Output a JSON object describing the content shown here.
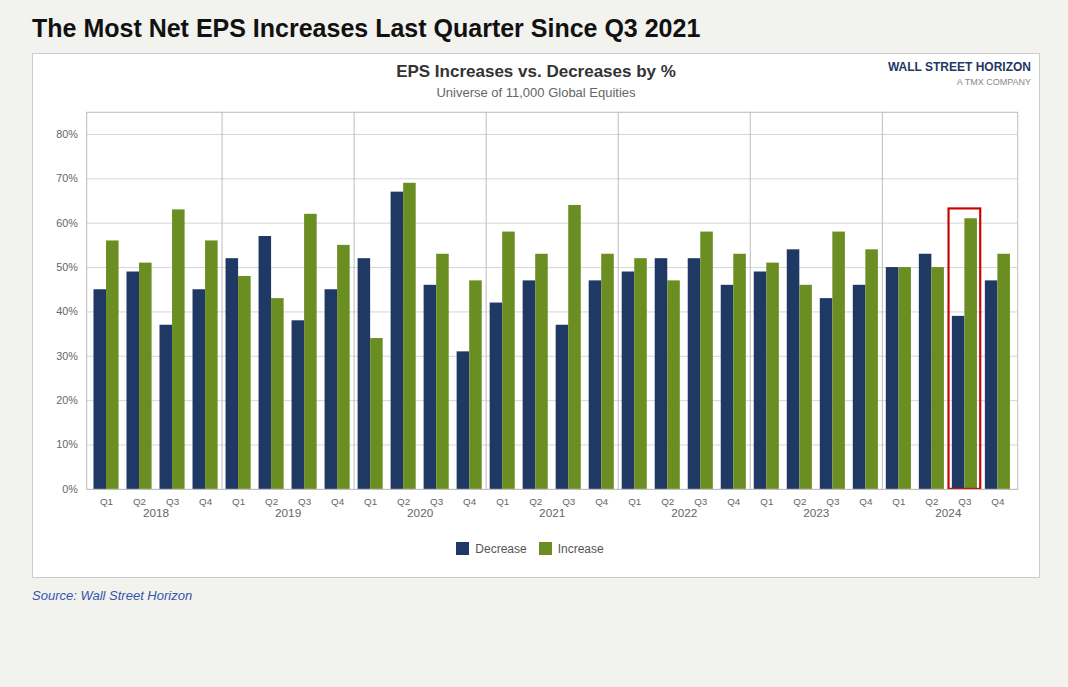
{
  "chart_data": {
    "type": "bar",
    "title": "The Most Net EPS Increases Last Quarter Since Q3 2021",
    "chart_title": "EPS Increases vs. Decreases by %",
    "subtitle": "Universe of 11,000 Global Equities",
    "source": "Source: Wall Street Horizon",
    "annotations": [
      {
        "text": "WALL STREET HORIZON"
      },
      {
        "text": "A TMX COMPANY"
      },
      {
        "type": "rect",
        "category": "Q3",
        "group": "2024",
        "color": "#cc0000"
      }
    ],
    "categories": [
      "Q1",
      "Q2",
      "Q3",
      "Q4",
      "Q1",
      "Q2",
      "Q3",
      "Q4",
      "Q1",
      "Q2",
      "Q3",
      "Q4",
      "Q1",
      "Q2",
      "Q3",
      "Q4",
      "Q1",
      "Q2",
      "Q3",
      "Q4",
      "Q1",
      "Q2",
      "Q3",
      "Q4",
      "Q1",
      "Q2",
      "Q3",
      "Q4"
    ],
    "category_groups": [
      "2018",
      "2018",
      "2018",
      "2018",
      "2019",
      "2019",
      "2019",
      "2019",
      "2020",
      "2020",
      "2020",
      "2020",
      "2021",
      "2021",
      "2021",
      "2021",
      "2022",
      "2022",
      "2022",
      "2022",
      "2023",
      "2023",
      "2023",
      "2023",
      "2024",
      "2024",
      "2024",
      "2024"
    ],
    "series": [
      {
        "name": "Decrease",
        "color": "#1f3864",
        "values": [
          45,
          49,
          37,
          45,
          52,
          57,
          38,
          45,
          52,
          67,
          46,
          31,
          42,
          47,
          37,
          47,
          49,
          52,
          52,
          46,
          49,
          54,
          43,
          46,
          50,
          53,
          39,
          47
        ]
      },
      {
        "name": "Increase",
        "color": "#6b8e23",
        "values": [
          56,
          51,
          63,
          56,
          48,
          43,
          62,
          55,
          34,
          69,
          53,
          47,
          58,
          53,
          64,
          53,
          52,
          47,
          58,
          53,
          51,
          46,
          58,
          54,
          50,
          50,
          61,
          53
        ]
      }
    ],
    "ylim": [
      0,
      85
    ],
    "yticks": [
      {
        "value": 0,
        "label": "0%"
      },
      {
        "value": 10,
        "label": "10%"
      },
      {
        "value": 20,
        "label": "20%"
      },
      {
        "value": 30,
        "label": "30%"
      },
      {
        "value": 40,
        "label": "40%"
      },
      {
        "value": 50,
        "label": "50%"
      },
      {
        "value": 60,
        "label": "60%"
      },
      {
        "value": 70,
        "label": "70%"
      },
      {
        "value": 80,
        "label": "80%"
      }
    ],
    "grid": true,
    "legend": "bottom"
  }
}
